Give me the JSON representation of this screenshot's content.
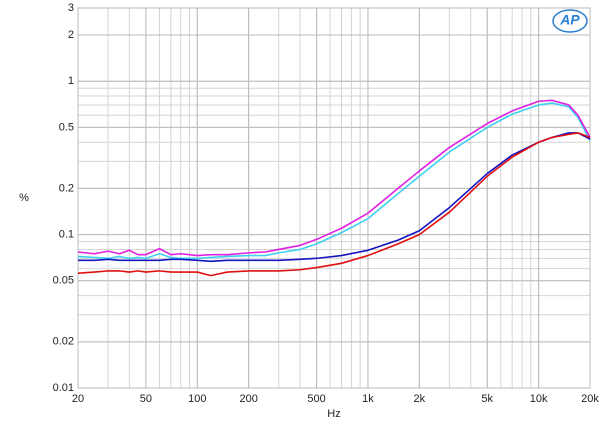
{
  "chart_data": {
    "type": "line",
    "logo": "AP",
    "xlabel": "Hz",
    "ylabel": "%",
    "x": [
      20,
      25,
      30,
      35,
      40,
      45,
      50,
      60,
      70,
      80,
      100,
      120,
      150,
      200,
      250,
      300,
      400,
      500,
      700,
      1000,
      1500,
      2000,
      3000,
      5000,
      7000,
      10000,
      12000,
      15000,
      17000,
      20000
    ],
    "series": [
      {
        "color": "#3fd0f0",
        "values": [
          0.072,
          0.071,
          0.07,
          0.072,
          0.07,
          0.071,
          0.07,
          0.075,
          0.071,
          0.07,
          0.07,
          0.071,
          0.072,
          0.073,
          0.073,
          0.076,
          0.08,
          0.087,
          0.103,
          0.127,
          0.185,
          0.24,
          0.345,
          0.5,
          0.61,
          0.7,
          0.72,
          0.68,
          0.58,
          0.41
        ]
      },
      {
        "color": "#e020e0",
        "values": [
          0.077,
          0.075,
          0.078,
          0.075,
          0.079,
          0.074,
          0.074,
          0.081,
          0.074,
          0.075,
          0.073,
          0.074,
          0.074,
          0.076,
          0.077,
          0.08,
          0.085,
          0.093,
          0.11,
          0.138,
          0.2,
          0.26,
          0.37,
          0.53,
          0.64,
          0.74,
          0.75,
          0.7,
          0.6,
          0.43
        ]
      },
      {
        "color": "#1414c0",
        "values": [
          0.068,
          0.068,
          0.069,
          0.068,
          0.068,
          0.068,
          0.068,
          0.068,
          0.069,
          0.069,
          0.068,
          0.067,
          0.068,
          0.068,
          0.068,
          0.068,
          0.069,
          0.07,
          0.073,
          0.079,
          0.092,
          0.106,
          0.15,
          0.25,
          0.33,
          0.4,
          0.43,
          0.46,
          0.46,
          0.42
        ]
      },
      {
        "color": "#e01010",
        "values": [
          0.056,
          0.057,
          0.058,
          0.058,
          0.057,
          0.058,
          0.057,
          0.058,
          0.057,
          0.057,
          0.057,
          0.054,
          0.057,
          0.058,
          0.058,
          0.058,
          0.059,
          0.061,
          0.065,
          0.073,
          0.087,
          0.1,
          0.14,
          0.24,
          0.32,
          0.4,
          0.43,
          0.45,
          0.46,
          0.43
        ]
      }
    ],
    "xscale": "log",
    "yscale": "log",
    "grid": true,
    "xlim": [
      20,
      20000
    ],
    "xticks": [
      20,
      50,
      100,
      200,
      500,
      {
        "value": 1000,
        "label": "1k"
      },
      {
        "value": 2000,
        "label": "2k"
      },
      {
        "value": 5000,
        "label": "5k"
      },
      {
        "value": 10000,
        "label": "10k"
      },
      {
        "value": 20000,
        "label": "20k"
      }
    ],
    "ylim": [
      0.01,
      3
    ],
    "yticks": [
      0.01,
      0.02,
      0.05,
      0.1,
      0.2,
      0.5,
      1,
      2,
      3
    ]
  }
}
